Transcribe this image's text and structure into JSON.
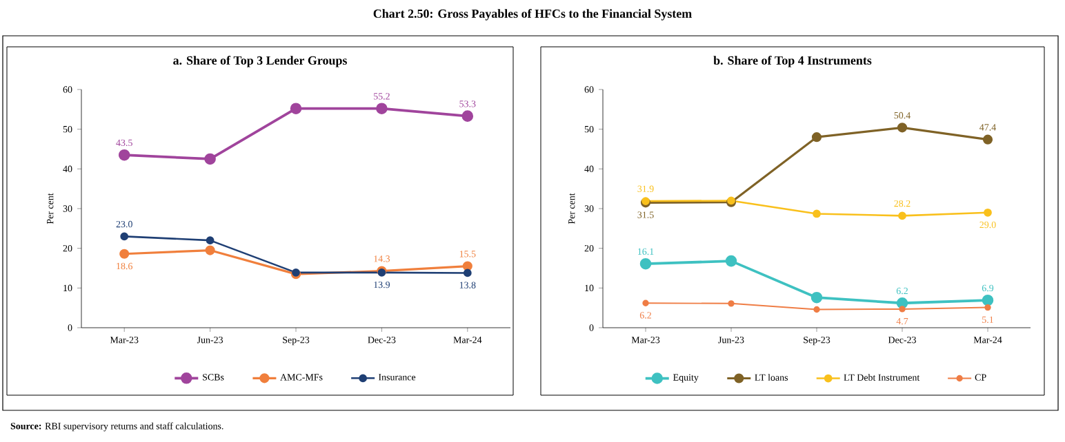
{
  "chart_data": [
    {
      "type": "line",
      "title": "a. Share of Top 3 Lender Groups",
      "ylabel": "Per cent",
      "categories": [
        "Mar-23",
        "Jun-23",
        "Sep-23",
        "Dec-23",
        "Mar-24"
      ],
      "series": [
        {
          "name": "SCBs",
          "color": "#a0449c",
          "values": [
            43.5,
            42.5,
            55.2,
            55.2,
            53.3
          ],
          "value_labels": [
            "43.5",
            null,
            null,
            "55.2",
            "53.3"
          ]
        },
        {
          "name": "AMC-MFs",
          "color": "#f07f3c",
          "values": [
            18.6,
            19.5,
            13.5,
            14.3,
            15.5
          ],
          "value_labels": [
            "18.6",
            null,
            null,
            "14.3",
            "15.5"
          ]
        },
        {
          "name": "Insurance",
          "color": "#1f3f74",
          "values": [
            23.0,
            22.0,
            13.9,
            13.9,
            13.8
          ],
          "value_labels": [
            "23.0",
            null,
            null,
            "13.9",
            "13.8"
          ]
        }
      ],
      "ylim": [
        0,
        60
      ],
      "yticks": [
        0,
        10,
        20,
        30,
        40,
        50,
        60
      ],
      "grid": false,
      "legend": "bottom",
      "marker": "circle",
      "line_style": "solid",
      "annotations": [
        "Chart 2.50: Gross Payables of HFCs to the Financial System",
        "**Source:** RBI supervisory returns and staff calculations."
      ]
    },
    {
      "type": "line",
      "title": "b. Share of Top 4 Instruments",
      "ylabel": "Per cent",
      "categories": [
        "Mar-23",
        "Jun-23",
        "Sep-23",
        "Dec-23",
        "Mar-24"
      ],
      "series": [
        {
          "name": "Equity",
          "color": "#3ec1c1",
          "values": [
            16.1,
            16.8,
            7.6,
            6.2,
            6.9
          ],
          "value_labels": [
            "16.1",
            null,
            null,
            "6.2",
            "6.9"
          ]
        },
        {
          "name": "LT loans",
          "color": "#7f6226",
          "values": [
            31.5,
            31.6,
            48.0,
            50.4,
            47.4
          ],
          "value_labels": [
            "31.5",
            null,
            null,
            "50.4",
            "47.4"
          ]
        },
        {
          "name": "LT Debt Instrument",
          "color": "#f9c01c",
          "values": [
            31.9,
            32.0,
            28.7,
            28.2,
            29.0
          ],
          "value_labels": [
            "31.9",
            null,
            null,
            "28.2",
            "29.0"
          ]
        },
        {
          "name": "CP",
          "color": "#ef7d45",
          "values": [
            6.2,
            6.1,
            4.6,
            4.7,
            5.1
          ],
          "value_labels": [
            "6.2",
            null,
            null,
            "4.7",
            "5.1"
          ]
        }
      ],
      "ylim": [
        0,
        60
      ],
      "yticks": [
        0,
        10,
        20,
        30,
        40,
        50,
        60
      ],
      "grid": false,
      "legend": "bottom",
      "marker": "circle",
      "line_style": "solid"
    }
  ]
}
